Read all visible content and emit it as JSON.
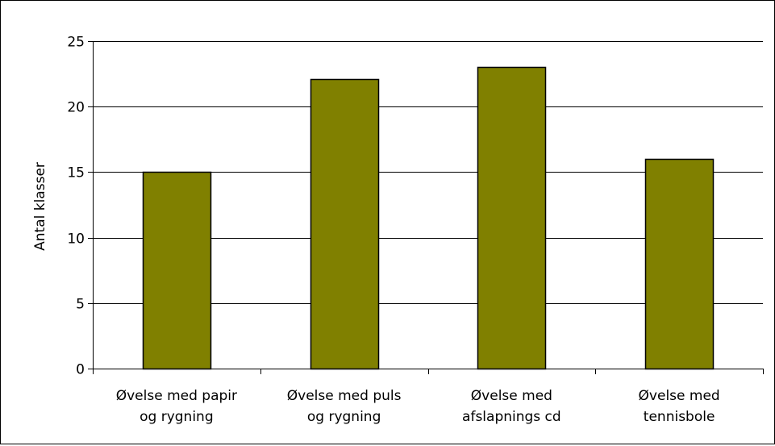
{
  "chart_data": {
    "type": "bar",
    "title": "",
    "xlabel": "",
    "ylabel": "Antal klasser",
    "ylim": [
      0,
      25
    ],
    "yticks": [
      0,
      5,
      10,
      15,
      20,
      25
    ],
    "grid": true,
    "legend": "none",
    "categories": [
      [
        "Øvelse med papir",
        "og rygning"
      ],
      [
        "Øvelse med puls",
        "og rygning"
      ],
      [
        "Øvelse med",
        "afslapnings cd"
      ],
      [
        "Øvelse med",
        "tennisbole"
      ]
    ],
    "values": [
      15,
      22.1,
      23,
      16
    ],
    "colors": {
      "bar_fill": "#808000",
      "bar_stroke": "#000000",
      "grid": "#000000",
      "axis": "#000000"
    }
  }
}
